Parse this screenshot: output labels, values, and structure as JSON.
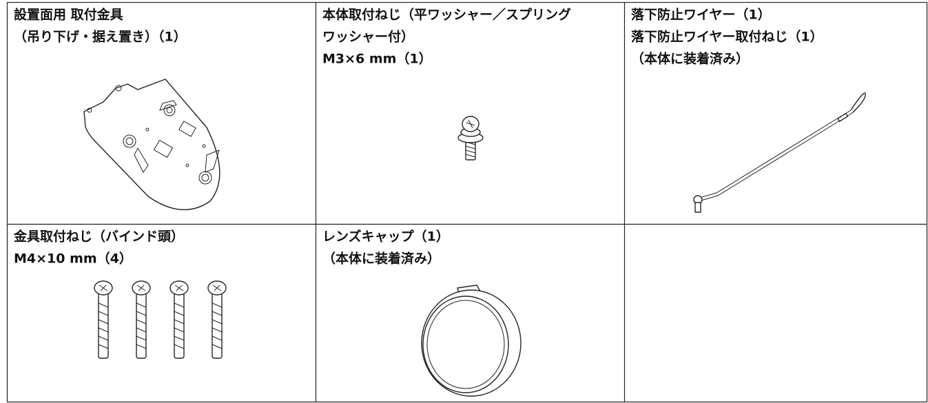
{
  "table": {
    "rows": [
      [
        {
          "lines": [
            "設置面用 取付金具",
            "（吊り下げ・据え置き）（1）"
          ]
        },
        {
          "lines": [
            "本体取付ねじ（平ワッシャー／スプリング",
            "ワッシャー付）",
            "M3×6 mm（1）"
          ]
        },
        {
          "lines": [
            "落下防止ワイヤー（1）",
            "落下防止ワイヤー取付ねじ（1）",
            "（本体に装着済み）"
          ]
        }
      ],
      [
        {
          "lines": [
            "金具取付ねじ（バインド頭）",
            "M4×10 mm（4）"
          ]
        },
        {
          "lines": [
            "レンズキャップ（1）",
            "（本体に装着済み）"
          ]
        }
      ]
    ]
  }
}
